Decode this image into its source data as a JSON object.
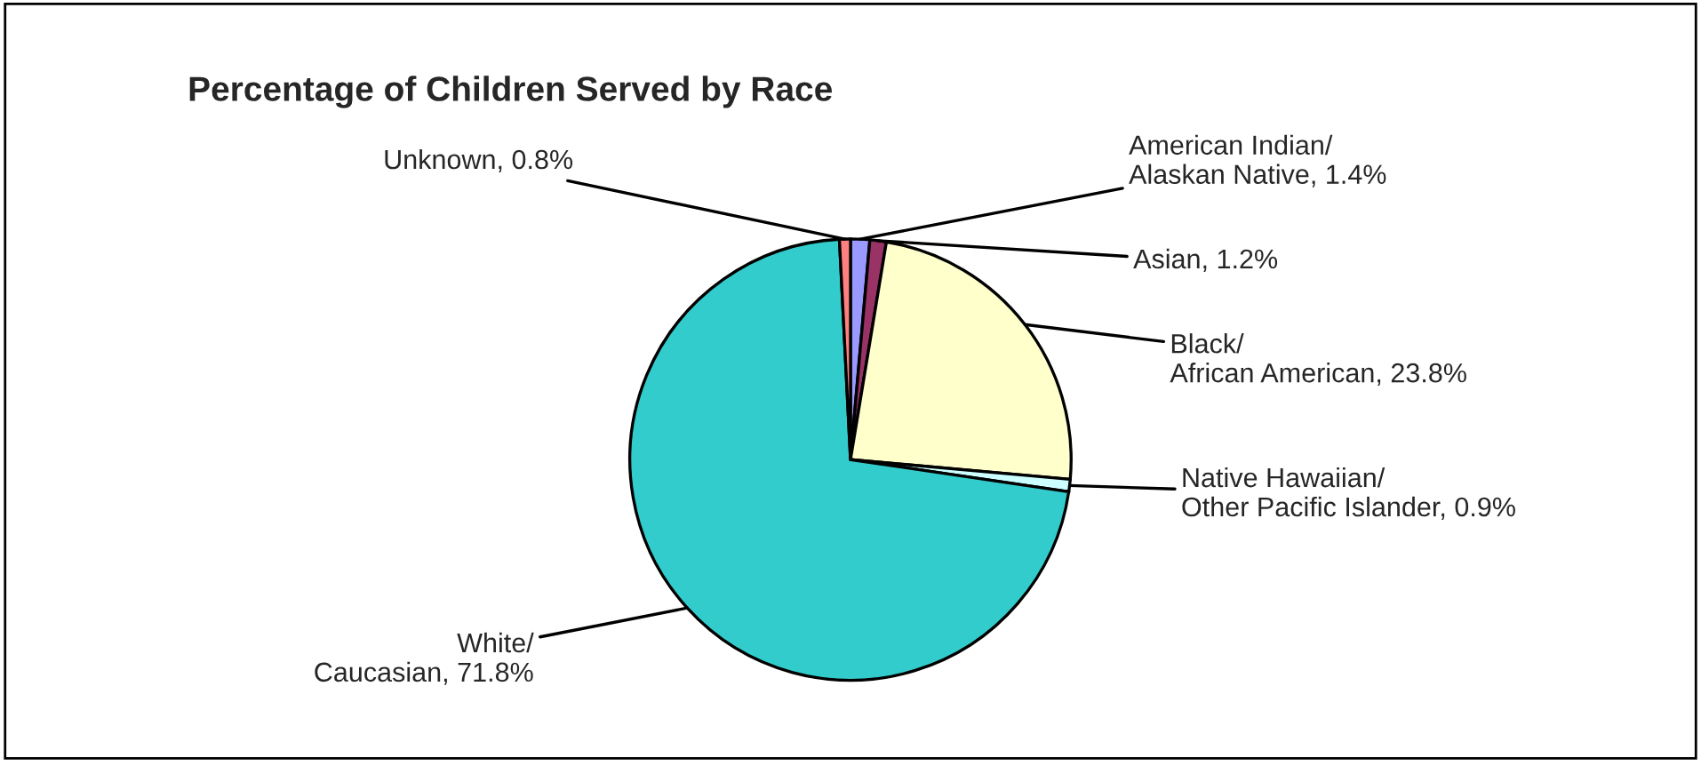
{
  "chart_data": {
    "type": "pie",
    "title": "Percentage of Children Served by Race",
    "categories": [
      "American Indian/Alaskan Native",
      "Asian",
      "Black/African American",
      "Native Hawaiian/Other Pacific Islander",
      "White/Caucasian",
      "Unknown"
    ],
    "values": [
      1.4,
      1.2,
      23.8,
      0.9,
      71.8,
      0.8
    ],
    "value_labels": [
      "1.4%",
      "1.2%",
      "23.8%",
      "0.9%",
      "71.8%",
      "0.8%"
    ],
    "colors": [
      "#9999ff",
      "#993366",
      "#ffffcc",
      "#ccffff",
      "#33cccc",
      "#ff8080"
    ],
    "legend": false
  }
}
